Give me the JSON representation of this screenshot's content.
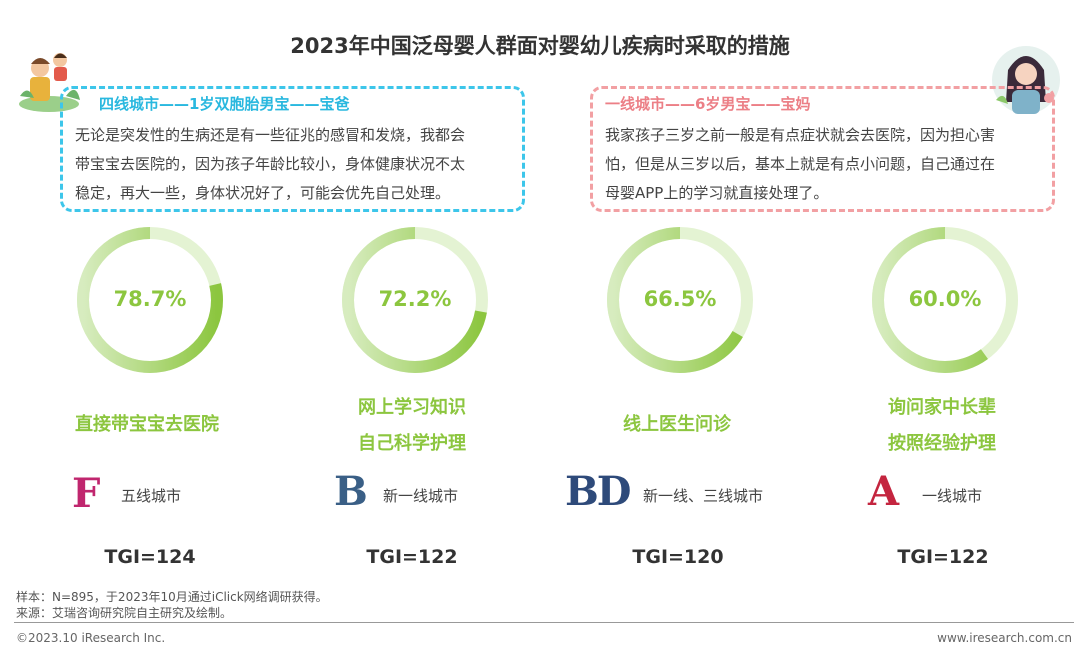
{
  "title": "2023年中国泛母婴人群面对婴幼儿疾病时采取的措施",
  "quotes": [
    {
      "head": "四线城市——1岁双胞胎男宝——宝爸",
      "lines": [
        "无论是突发性的生病还是有一些征兆的感冒和发烧，我都会",
        "带宝宝去医院的，因为孩子年龄比较小，身体健康状况不太",
        "稳定，再大一些，身体状况好了，可能会优先自己处理。"
      ]
    },
    {
      "head": "一线城市——6岁男宝——宝妈",
      "lines": [
        "我家孩子三岁之前一般是有点症状就会去医院，因为担心害",
        "怕，但是从三岁以后，基本上就是有点小问题，自己通过在",
        "母婴APP上的学习就直接处理了。"
      ]
    }
  ],
  "chart_data": {
    "type": "donut",
    "title": "2023年中国泛母婴人群面对婴幼儿疾病时采取的措施",
    "unit": "%",
    "categories": [
      "直接带宝宝去医院",
      "网上学习知识自己科学护理",
      "线上医生问诊",
      "询问家中长辈按照经验护理"
    ],
    "values": [
      78.7,
      72.2,
      66.5,
      60.0
    ],
    "labels": [
      "78.7%",
      "72.2%",
      "66.5%",
      "60.0%"
    ],
    "measures": [
      [
        "直接带宝宝去医院"
      ],
      [
        "网上学习知识",
        "自己科学护理"
      ],
      [
        "线上医生问诊"
      ],
      [
        "询问家中长辈",
        "按照经验护理"
      ]
    ],
    "city_letters": [
      "F",
      "B",
      "BD",
      "A"
    ],
    "city_labels": [
      "五线城市",
      "新一线城市",
      "新一线、三线城市",
      "一线城市"
    ],
    "tgi": [
      "TGI=124",
      "TGI=122",
      "TGI=120",
      "TGI=122"
    ]
  },
  "colors": {
    "ring": "#8cc63f",
    "ring_track": "#e4f3d3",
    "quote_left": "#3dc6ea",
    "quote_right": "#f2a0a3"
  },
  "notes": {
    "sample": "样本：N=895，于2023年10月通过iClick网络调研获得。",
    "source": "来源：艾瑞咨询研究院自主研究及绘制。"
  },
  "footer": {
    "copyright": "©2023.10 iResearch Inc.",
    "website": "www.iresearch.com.cn"
  }
}
